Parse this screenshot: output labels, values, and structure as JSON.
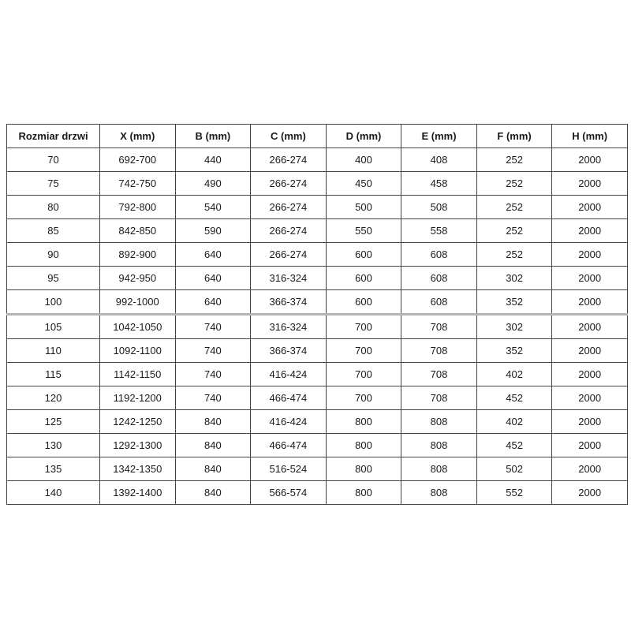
{
  "page": {
    "background_color": "#ffffff"
  },
  "styles": {
    "grid_border_color": "#444444",
    "section_divider_color": "#b5b5b5",
    "text_color": "#1a1a1a"
  },
  "chart_data": {
    "type": "table",
    "columns": [
      "Rozmiar drzwi",
      "X (mm)",
      "B (mm)",
      "C (mm)",
      "D (mm)",
      "E (mm)",
      "F (mm)",
      "H (mm)"
    ],
    "rows": [
      [
        "70",
        "692-700",
        "440",
        "266-274",
        "400",
        "408",
        "252",
        "2000"
      ],
      [
        "75",
        "742-750",
        "490",
        "266-274",
        "450",
        "458",
        "252",
        "2000"
      ],
      [
        "80",
        "792-800",
        "540",
        "266-274",
        "500",
        "508",
        "252",
        "2000"
      ],
      [
        "85",
        "842-850",
        "590",
        "266-274",
        "550",
        "558",
        "252",
        "2000"
      ],
      [
        "90",
        "892-900",
        "640",
        "266-274",
        "600",
        "608",
        "252",
        "2000"
      ],
      [
        "95",
        "942-950",
        "640",
        "316-324",
        "600",
        "608",
        "302",
        "2000"
      ],
      [
        "100",
        "992-1000",
        "640",
        "366-374",
        "600",
        "608",
        "352",
        "2000"
      ],
      [
        "105",
        "1042-1050",
        "740",
        "316-324",
        "700",
        "708",
        "302",
        "2000"
      ],
      [
        "110",
        "1092-1100",
        "740",
        "366-374",
        "700",
        "708",
        "352",
        "2000"
      ],
      [
        "115",
        "1142-1150",
        "740",
        "416-424",
        "700",
        "708",
        "402",
        "2000"
      ],
      [
        "120",
        "1192-1200",
        "740",
        "466-474",
        "700",
        "708",
        "452",
        "2000"
      ],
      [
        "125",
        "1242-1250",
        "840",
        "416-424",
        "800",
        "808",
        "402",
        "2000"
      ],
      [
        "130",
        "1292-1300",
        "840",
        "466-474",
        "800",
        "808",
        "452",
        "2000"
      ],
      [
        "135",
        "1342-1350",
        "840",
        "516-524",
        "800",
        "808",
        "502",
        "2000"
      ],
      [
        "140",
        "1392-1400",
        "840",
        "566-574",
        "800",
        "808",
        "552",
        "2000"
      ]
    ],
    "divider_after_row": 6,
    "legend_position": "none",
    "grid": true
  }
}
